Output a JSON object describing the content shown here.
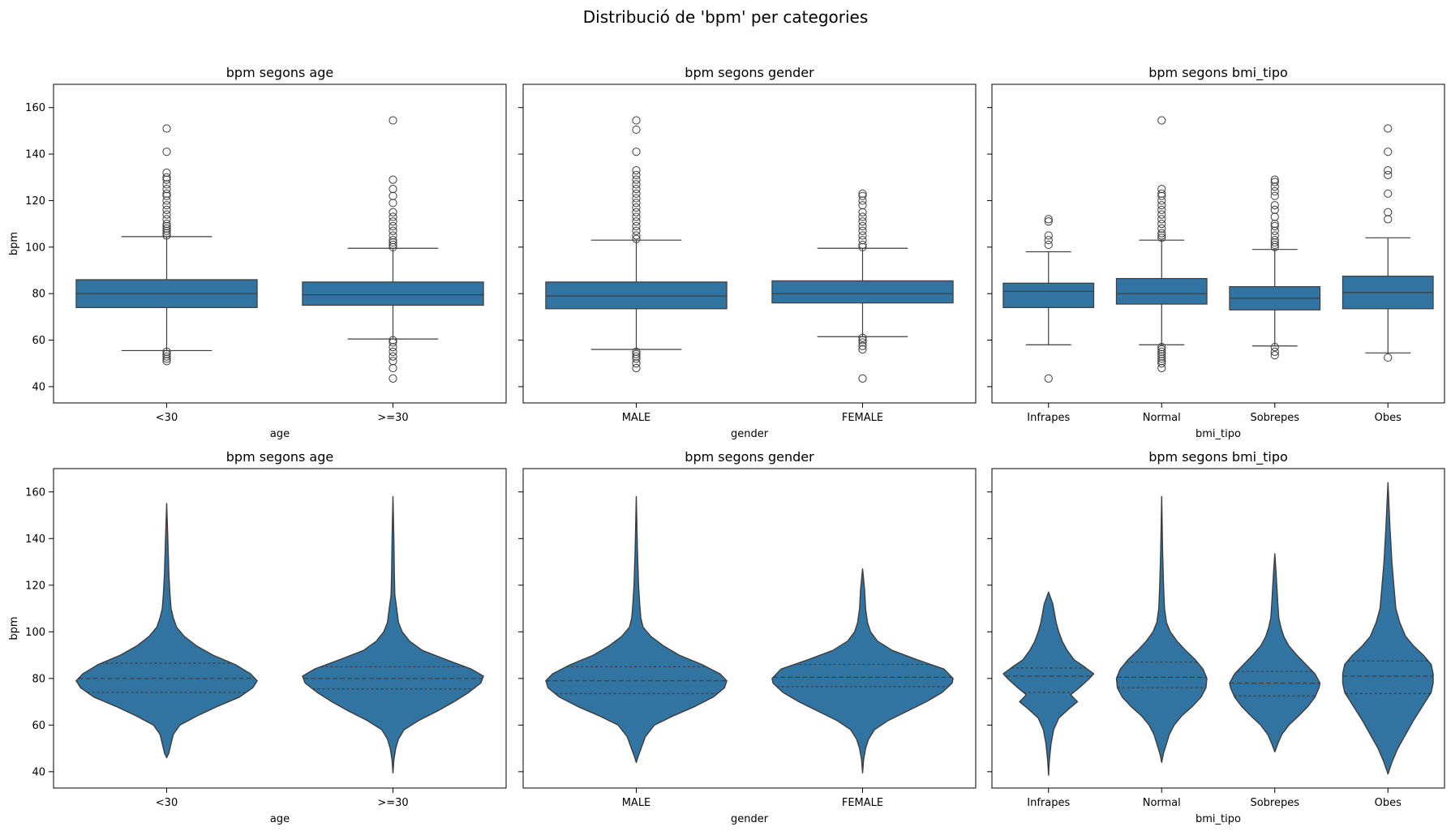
{
  "figure": {
    "suptitle": "Distribució de 'bpm' per categories"
  },
  "style": {
    "box_color": "#3274a1",
    "line_color": "#3d3d3d"
  },
  "chart_data": [
    {
      "type": "box",
      "title": "bpm segons age",
      "xlabel": "age",
      "ylabel": "bpm",
      "ylim": [
        33,
        170
      ],
      "yticks": [
        40,
        60,
        80,
        100,
        120,
        140,
        160
      ],
      "categories": [
        "<30",
        ">=30"
      ],
      "boxes": [
        {
          "category": "<30",
          "q1": 74,
          "median": 80,
          "q3": 86,
          "whisker_low": 55.5,
          "whisker_high": 104.5,
          "outliers": [
            51,
            52,
            53,
            54,
            55,
            105,
            106,
            107,
            108,
            109,
            110,
            112,
            114,
            116,
            118,
            120,
            122,
            123,
            125,
            127,
            129,
            130,
            132,
            141,
            151
          ]
        },
        {
          "category": ">=30",
          "q1": 75,
          "median": 79.5,
          "q3": 85,
          "whisker_low": 60.5,
          "whisker_high": 99.5,
          "outliers": [
            43.5,
            48,
            51,
            53,
            55,
            57,
            59,
            60,
            100,
            101,
            102,
            103,
            105,
            107,
            109,
            111,
            113,
            115,
            119,
            122,
            125,
            129,
            154.5
          ]
        }
      ]
    },
    {
      "type": "box",
      "title": "bpm segons gender",
      "xlabel": "gender",
      "ylim": [
        33,
        170
      ],
      "yticks": [
        40,
        60,
        80,
        100,
        120,
        140,
        160
      ],
      "categories": [
        "MALE",
        "FEMALE"
      ],
      "boxes": [
        {
          "category": "MALE",
          "q1": 73.5,
          "median": 79,
          "q3": 85,
          "whisker_low": 56,
          "whisker_high": 103,
          "outliers": [
            48,
            50,
            52,
            53,
            54,
            55,
            103.5,
            105,
            107,
            109,
            111,
            113,
            115,
            117,
            119,
            121,
            123,
            125,
            127,
            129,
            131,
            133,
            141,
            150.5,
            154.5
          ]
        },
        {
          "category": "FEMALE",
          "q1": 76,
          "median": 80,
          "q3": 85.5,
          "whisker_low": 61.5,
          "whisker_high": 99.5,
          "outliers": [
            43.5,
            56,
            57.5,
            59,
            60,
            61,
            100,
            101,
            103,
            105,
            107,
            109,
            111,
            113,
            115,
            118,
            120,
            122,
            123
          ]
        }
      ]
    },
    {
      "type": "box",
      "title": "bpm segons bmi_tipo",
      "xlabel": "bmi_tipo",
      "ylim": [
        33,
        170
      ],
      "yticks": [
        40,
        60,
        80,
        100,
        120,
        140,
        160
      ],
      "categories": [
        "Infrapes",
        "Normal",
        "Sobrepes",
        "Obes"
      ],
      "boxes": [
        {
          "category": "Infrapes",
          "q1": 74,
          "median": 81,
          "q3": 84.5,
          "whisker_low": 58,
          "whisker_high": 98,
          "outliers": [
            43.5,
            101,
            103,
            105,
            111,
            112
          ]
        },
        {
          "category": "Normal",
          "q1": 75.5,
          "median": 80,
          "q3": 86.5,
          "whisker_low": 58,
          "whisker_high": 103,
          "outliers": [
            48,
            50,
            51,
            52,
            53,
            54,
            55,
            56,
            57,
            104,
            105,
            106,
            108,
            110,
            112,
            114,
            116,
            118,
            120,
            122,
            123,
            125,
            154.5
          ]
        },
        {
          "category": "Sobrepes",
          "q1": 73,
          "median": 78,
          "q3": 83,
          "whisker_low": 57.5,
          "whisker_high": 99,
          "outliers": [
            53.5,
            55,
            57,
            100,
            101,
            102,
            103,
            105,
            107,
            109,
            110,
            113,
            116,
            118,
            122,
            124,
            126,
            128,
            129
          ]
        },
        {
          "category": "Obes",
          "q1": 73.5,
          "median": 80.5,
          "q3": 87.5,
          "whisker_low": 54.5,
          "whisker_high": 104,
          "outliers": [
            52.5,
            112,
            115,
            123,
            131,
            133,
            141,
            151
          ]
        }
      ]
    },
    {
      "type": "violin",
      "title": "bpm segons age",
      "xlabel": "age",
      "ylabel": "bpm",
      "ylim": [
        33,
        170
      ],
      "yticks": [
        40,
        60,
        80,
        100,
        120,
        140,
        160
      ],
      "categories": [
        "<30",
        ">=30"
      ],
      "violins": [
        {
          "category": "<30",
          "q1": 74,
          "median": 80,
          "q3": 86.5,
          "profile": [
            [
              46,
              0
            ],
            [
              48,
              2
            ],
            [
              52,
              4
            ],
            [
              56,
              6
            ],
            [
              60,
              12
            ],
            [
              64,
              28
            ],
            [
              68,
              46
            ],
            [
              72,
              66
            ],
            [
              76,
              78
            ],
            [
              79,
              82
            ],
            [
              82,
              76
            ],
            [
              86,
              62
            ],
            [
              90,
              42
            ],
            [
              94,
              27
            ],
            [
              98,
              16
            ],
            [
              102,
              9
            ],
            [
              106,
              6
            ],
            [
              110,
              4
            ],
            [
              116,
              3
            ],
            [
              125,
              2
            ],
            [
              140,
              1
            ],
            [
              155,
              0
            ]
          ]
        },
        {
          "category": ">=30",
          "q1": 75.5,
          "median": 80,
          "q3": 85,
          "profile": [
            [
              39.5,
              0
            ],
            [
              45,
              1
            ],
            [
              50,
              3
            ],
            [
              54,
              6
            ],
            [
              58,
              12
            ],
            [
              62,
              28
            ],
            [
              66,
              48
            ],
            [
              70,
              66
            ],
            [
              74,
              82
            ],
            [
              78,
              95
            ],
            [
              81,
              98
            ],
            [
              84,
              85
            ],
            [
              88,
              58
            ],
            [
              92,
              32
            ],
            [
              96,
              18
            ],
            [
              100,
              10
            ],
            [
              104,
              6
            ],
            [
              110,
              4
            ],
            [
              116,
              2
            ],
            [
              125,
              1.5
            ],
            [
              140,
              1
            ],
            [
              158,
              0
            ]
          ]
        }
      ]
    },
    {
      "type": "violin",
      "title": "bpm segons gender",
      "xlabel": "gender",
      "ylabel": "",
      "ylim": [
        33,
        170
      ],
      "yticks": [
        40,
        60,
        80,
        100,
        120,
        140,
        160
      ],
      "categories": [
        "MALE",
        "FEMALE"
      ],
      "violins": [
        {
          "category": "MALE",
          "q1": 73.5,
          "median": 79,
          "q3": 85,
          "profile": [
            [
              44,
              0
            ],
            [
              47,
              2
            ],
            [
              51,
              5
            ],
            [
              55,
              8
            ],
            [
              60,
              16
            ],
            [
              64,
              33
            ],
            [
              68,
              52
            ],
            [
              72,
              68
            ],
            [
              76,
              78
            ],
            [
              79,
              80
            ],
            [
              82,
              74
            ],
            [
              86,
              58
            ],
            [
              90,
              38
            ],
            [
              94,
              24
            ],
            [
              98,
              13
            ],
            [
              102,
              6
            ],
            [
              106,
              4
            ],
            [
              112,
              3
            ],
            [
              120,
              2
            ],
            [
              135,
              1
            ],
            [
              158,
              0
            ]
          ]
        },
        {
          "category": "FEMALE",
          "q1": 76.5,
          "median": 80.5,
          "q3": 86,
          "profile": [
            [
              39.5,
              0
            ],
            [
              45,
              1
            ],
            [
              50,
              3
            ],
            [
              54,
              6
            ],
            [
              58,
              12
            ],
            [
              62,
              26
            ],
            [
              66,
              45
            ],
            [
              70,
              64
            ],
            [
              74,
              80
            ],
            [
              78,
              90
            ],
            [
              80,
              91
            ],
            [
              84,
              82
            ],
            [
              88,
              55
            ],
            [
              92,
              30
            ],
            [
              96,
              15
            ],
            [
              100,
              8
            ],
            [
              104,
              5
            ],
            [
              110,
              3
            ],
            [
              118,
              2
            ],
            [
              127,
              0
            ]
          ]
        }
      ]
    },
    {
      "type": "violin",
      "title": "bpm segons bmi_tipo",
      "xlabel": "bmi_tipo",
      "ylabel": "",
      "ylim": [
        33,
        170
      ],
      "yticks": [
        40,
        60,
        80,
        100,
        120,
        140,
        160
      ],
      "categories": [
        "Infrapes",
        "Normal",
        "Sobrepes",
        "Obes"
      ],
      "violins": [
        {
          "category": "Infrapes",
          "q1": 74,
          "median": 81,
          "q3": 84.5,
          "profile": [
            [
              38.5,
              0
            ],
            [
              45,
              1
            ],
            [
              52,
              3
            ],
            [
              58,
              6
            ],
            [
              63,
              12
            ],
            [
              67,
              24
            ],
            [
              70,
              34
            ],
            [
              73,
              26
            ],
            [
              76,
              36
            ],
            [
              80,
              48
            ],
            [
              82,
              53
            ],
            [
              85,
              42
            ],
            [
              88,
              30
            ],
            [
              92,
              22
            ],
            [
              96,
              16
            ],
            [
              100,
              12
            ],
            [
              104,
              9
            ],
            [
              108,
              7
            ],
            [
              112,
              5
            ],
            [
              117,
              0
            ]
          ]
        },
        {
          "category": "Normal",
          "q1": 76,
          "median": 80.5,
          "q3": 87,
          "profile": [
            [
              44,
              0
            ],
            [
              48,
              2
            ],
            [
              52,
              5
            ],
            [
              56,
              8
            ],
            [
              60,
              13
            ],
            [
              64,
              21
            ],
            [
              68,
              32
            ],
            [
              72,
              41
            ],
            [
              76,
              46
            ],
            [
              80,
              47
            ],
            [
              84,
              43
            ],
            [
              88,
              35
            ],
            [
              92,
              25
            ],
            [
              96,
              16
            ],
            [
              100,
              9
            ],
            [
              104,
              5
            ],
            [
              110,
              3
            ],
            [
              120,
              2
            ],
            [
              135,
              1
            ],
            [
              158,
              0
            ]
          ]
        },
        {
          "category": "Sobrepes",
          "q1": 72.5,
          "median": 78,
          "q3": 83,
          "profile": [
            [
              48.5,
              0
            ],
            [
              52,
              3
            ],
            [
              56,
              7
            ],
            [
              60,
              14
            ],
            [
              64,
              24
            ],
            [
              68,
              33
            ],
            [
              72,
              40
            ],
            [
              76,
              44
            ],
            [
              78,
              45
            ],
            [
              82,
              40
            ],
            [
              86,
              31
            ],
            [
              90,
              22
            ],
            [
              94,
              14
            ],
            [
              98,
              9
            ],
            [
              102,
              6
            ],
            [
              106,
              4
            ],
            [
              112,
              3
            ],
            [
              120,
              2
            ],
            [
              127,
              1
            ],
            [
              133.5,
              0
            ]
          ]
        },
        {
          "category": "Obes",
          "q1": 73.5,
          "median": 81,
          "q3": 87.5,
          "profile": [
            [
              39,
              0
            ],
            [
              44,
              2
            ],
            [
              50,
              5
            ],
            [
              56,
              9
            ],
            [
              62,
              13
            ],
            [
              66,
              16
            ],
            [
              70,
              19
            ],
            [
              74,
              22
            ],
            [
              78,
              23
            ],
            [
              82,
              23
            ],
            [
              86,
              22
            ],
            [
              90,
              18
            ],
            [
              94,
              13
            ],
            [
              98,
              9
            ],
            [
              104,
              6
            ],
            [
              110,
              4
            ],
            [
              120,
              3
            ],
            [
              130,
              2
            ],
            [
              145,
              1
            ],
            [
              164,
              0
            ]
          ]
        }
      ]
    }
  ]
}
